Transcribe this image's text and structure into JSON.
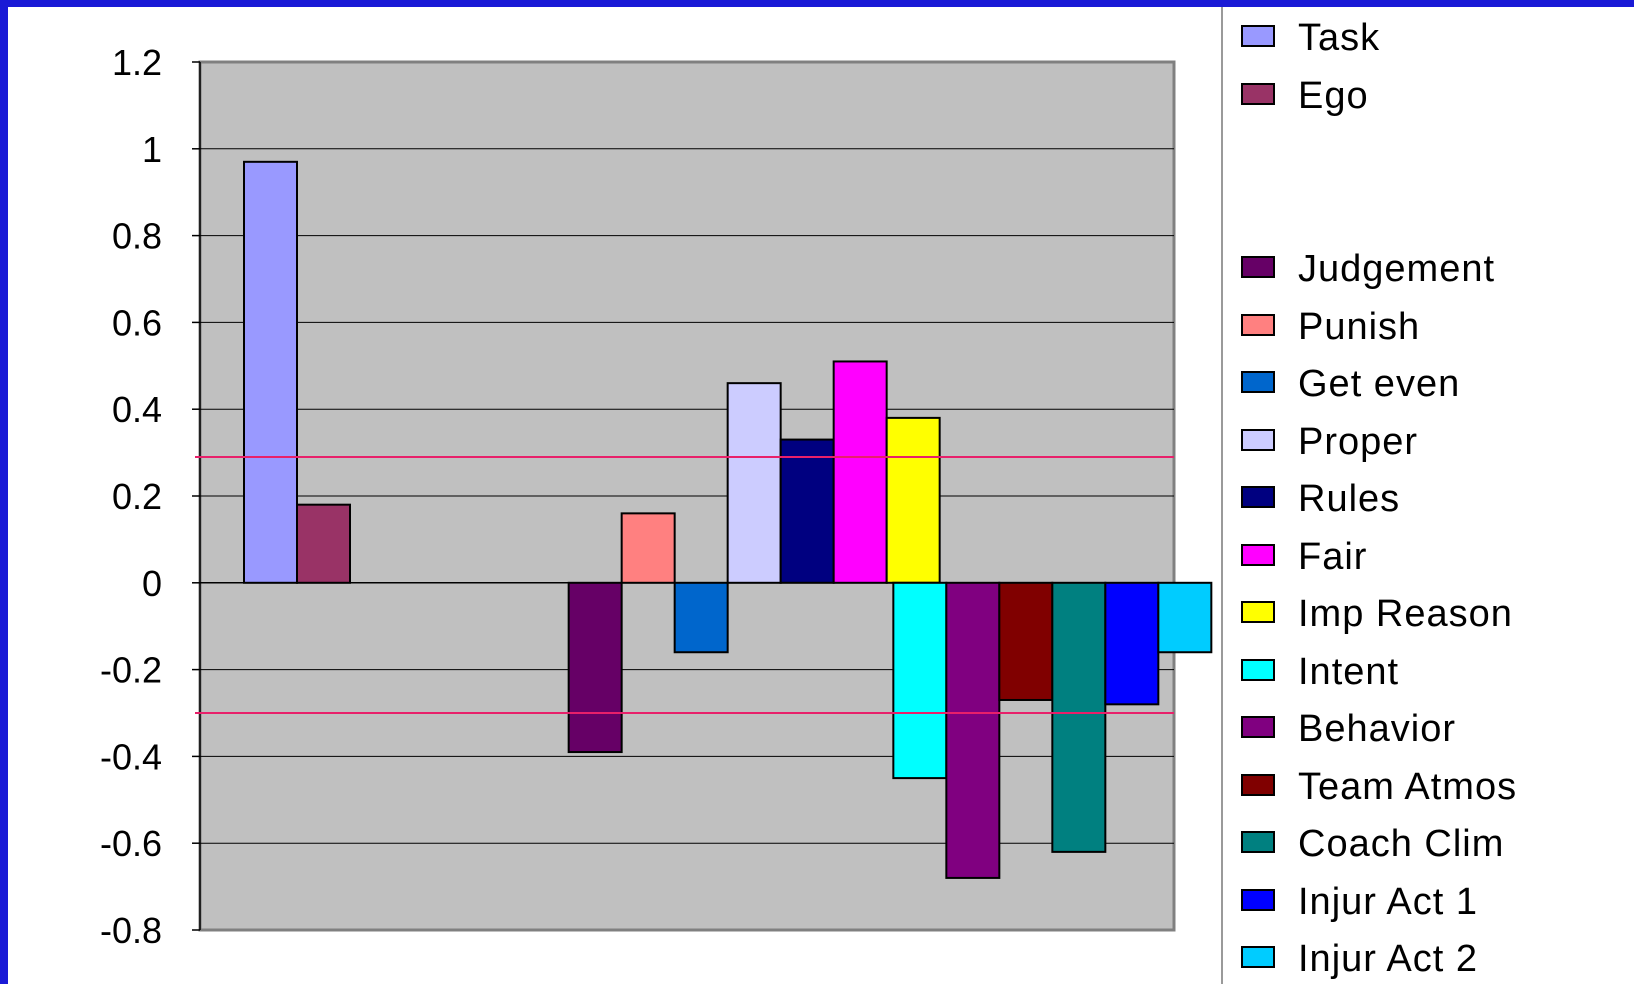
{
  "chart_data": {
    "type": "bar",
    "title": "",
    "xlabel": "",
    "ylabel": "",
    "ylim": [
      -0.8,
      1.2
    ],
    "yticks": [
      "1.2",
      "1",
      "0.8",
      "0.6",
      "0.4",
      "0.2",
      "0",
      "-0.2",
      "-0.4",
      "-0.6",
      "-0.8"
    ],
    "grid": true,
    "legend_position": "right",
    "threshold_lines": [
      0.29,
      -0.3
    ],
    "threshold_color": "#e8206a",
    "plot_background": "#c0c0c0",
    "groups": [
      {
        "series": [
          0,
          1
        ]
      },
      {
        "series": [
          2,
          3,
          4,
          5,
          6,
          7,
          8
        ]
      },
      {
        "series": [
          9,
          10,
          11,
          12,
          13,
          14
        ]
      }
    ],
    "series": [
      {
        "name": "Task",
        "value": 0.97,
        "color": "#9999ff"
      },
      {
        "name": "Ego",
        "value": 0.18,
        "color": "#993366"
      },
      {
        "name": "Judgement",
        "value": -0.39,
        "color": "#660066"
      },
      {
        "name": "Punish",
        "value": 0.16,
        "color": "#ff8080"
      },
      {
        "name": "Get even",
        "value": -0.16,
        "color": "#0066cc"
      },
      {
        "name": "Proper",
        "value": 0.46,
        "color": "#ccccff"
      },
      {
        "name": "Rules",
        "value": 0.33,
        "color": "#000080"
      },
      {
        "name": "Fair",
        "value": 0.51,
        "color": "#ff00ff"
      },
      {
        "name": "Imp Reason",
        "value": 0.38,
        "color": "#ffff00"
      },
      {
        "name": "Intent",
        "value": -0.45,
        "color": "#00ffff"
      },
      {
        "name": "Behavior",
        "value": -0.68,
        "color": "#800080"
      },
      {
        "name": "Team Atmos",
        "value": -0.27,
        "color": "#800000"
      },
      {
        "name": "Coach Clim",
        "value": -0.62,
        "color": "#008080"
      },
      {
        "name": "Injur Act 1",
        "value": -0.28,
        "color": "#0000ff"
      },
      {
        "name": "Injur Act 2",
        "value": -0.16,
        "color": "#00ccff"
      }
    ]
  }
}
